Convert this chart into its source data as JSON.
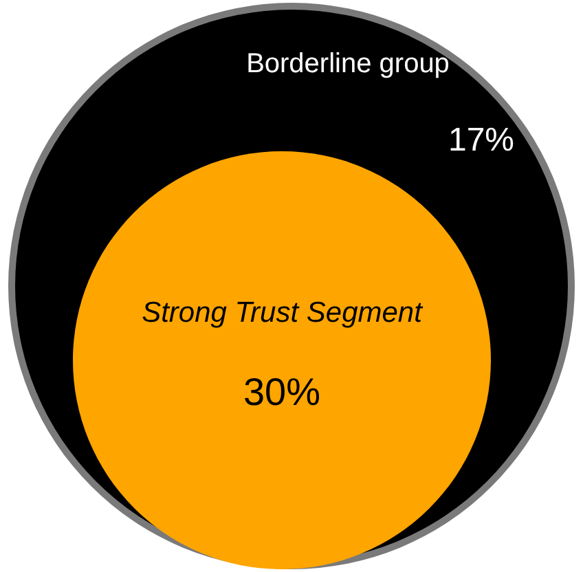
{
  "chart_data": {
    "type": "other",
    "categories": [
      "Borderline group",
      "Strong Trust Segment"
    ],
    "values": [
      17,
      30
    ],
    "value_labels": [
      "17%",
      "30%"
    ],
    "colors": [
      "#000000",
      "#ffa500"
    ]
  }
}
